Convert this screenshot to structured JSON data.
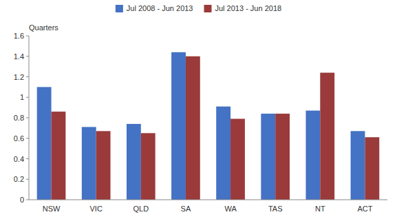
{
  "chart_data": {
    "type": "bar",
    "ylabel": "Quarters",
    "categories": [
      "NSW",
      "VIC",
      "QLD",
      "SA",
      "WA",
      "TAS",
      "NT",
      "ACT"
    ],
    "series": [
      {
        "name": "Jul 2008 - Jun 2013",
        "color": "#4472C4",
        "values": [
          1.1,
          0.71,
          0.74,
          1.44,
          0.91,
          0.84,
          0.87,
          0.67
        ]
      },
      {
        "name": "Jul 2013 - Jun 2018",
        "color": "#9B3A3A",
        "values": [
          0.86,
          0.67,
          0.65,
          1.4,
          0.79,
          0.84,
          1.24,
          0.61
        ]
      }
    ],
    "ylim": [
      0,
      1.6
    ],
    "yticks": [
      0,
      0.2,
      0.4,
      0.6,
      0.8,
      1.0,
      1.2,
      1.4,
      1.6
    ],
    "grid": false,
    "legend": "top"
  }
}
